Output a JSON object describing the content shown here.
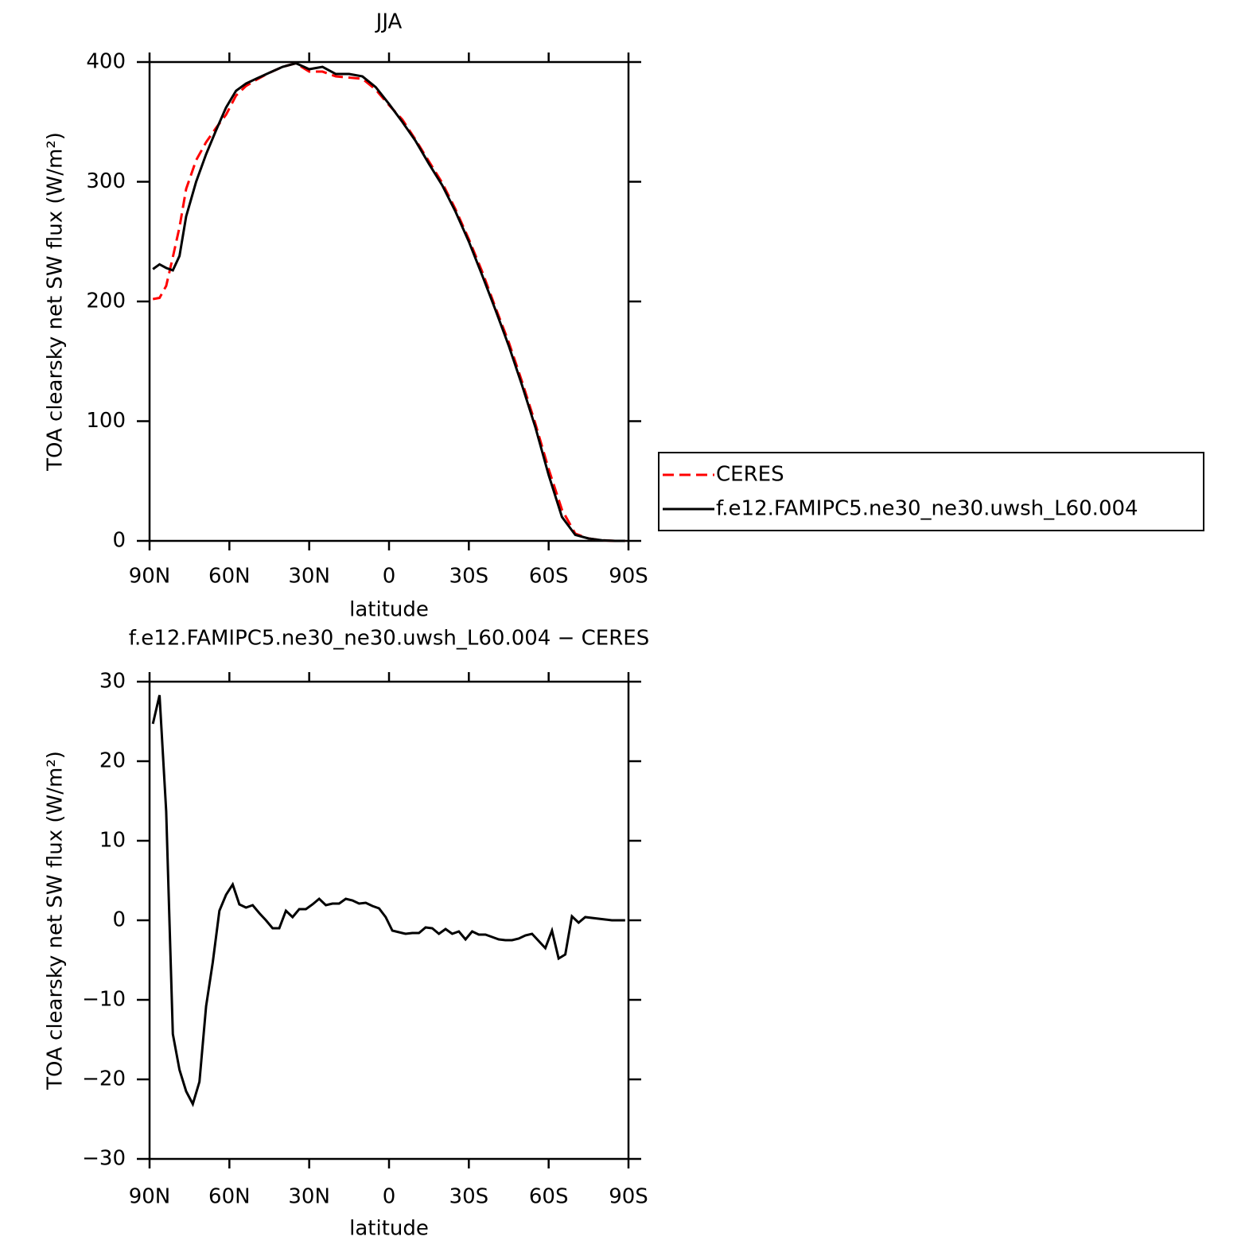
{
  "chart_data": [
    {
      "type": "line",
      "title": "JJA",
      "x_label": "latitude",
      "y_label": "TOA clearsky net SW flux (W/m²)",
      "x": [
        88.75,
        86.25,
        83.75,
        81.25,
        78.75,
        76.25,
        72.5,
        68.75,
        65,
        61.25,
        57.5,
        53.75,
        50,
        45,
        40,
        35,
        30,
        25,
        20,
        15,
        10,
        5,
        0,
        -5,
        -10,
        -15,
        -20,
        -25,
        -30,
        -35,
        -40,
        -45,
        -50,
        -55,
        -60,
        -65,
        -70,
        -75,
        -80,
        -85,
        -88.75
      ],
      "series": [
        {
          "name": "CERES",
          "color": "#ff0000",
          "line_style": "dashed",
          "values": [
            202,
            203,
            213,
            237,
            262,
            294,
            318,
            333,
            345,
            356,
            372,
            380,
            385,
            391,
            396,
            399,
            392,
            392,
            388,
            387,
            386,
            377,
            364,
            352,
            335,
            317,
            299,
            277,
            252,
            225,
            195,
            166,
            133,
            98,
            60,
            26,
            6,
            2,
            0.5,
            0,
            0
          ]
        },
        {
          "name": "f.e12.FAMIPC5.ne30_ne30.uwsh_L60.004",
          "color": "#000000",
          "line_style": "solid",
          "values": [
            227,
            231,
            228,
            226,
            238,
            271,
            300,
            323,
            343,
            362,
            376,
            382,
            386,
            391,
            396,
            399,
            394,
            396,
            390,
            390,
            388,
            379,
            365,
            350,
            334,
            315,
            297,
            275,
            250,
            222,
            193,
            163,
            130,
            95,
            55,
            20,
            5,
            2,
            0.5,
            0,
            0
          ]
        }
      ],
      "xlim": [
        90,
        -90
      ],
      "xticks": [
        {
          "value": 90,
          "label": "90N"
        },
        {
          "value": 60,
          "label": "60N"
        },
        {
          "value": 30,
          "label": "30N"
        },
        0,
        {
          "value": -30,
          "label": "30S"
        },
        {
          "value": -60,
          "label": "60S"
        },
        {
          "value": -90,
          "label": "90S"
        }
      ],
      "ylim": [
        0,
        400
      ],
      "yticks": [
        0,
        100,
        200,
        300,
        400
      ],
      "legend": "right"
    },
    {
      "type": "line",
      "title": "f.e12.FAMIPC5.ne30_ne30.uwsh_L60.004 − CERES",
      "x_label": "latitude",
      "y_label": "TOA clearsky net SW flux (W/m²)",
      "x": [
        88.75,
        86.25,
        83.75,
        81.25,
        78.75,
        76.25,
        73.75,
        71.25,
        68.75,
        66.25,
        63.75,
        61.25,
        58.75,
        56.25,
        53.75,
        51.25,
        48.75,
        46.25,
        43.75,
        41.25,
        38.75,
        36.25,
        33.75,
        31.25,
        28.75,
        26.25,
        23.75,
        21.25,
        18.75,
        16.25,
        13.75,
        11.25,
        8.75,
        6.25,
        3.75,
        1.25,
        -1.25,
        -3.75,
        -6.25,
        -8.75,
        -11.25,
        -13.75,
        -16.25,
        -18.75,
        -21.25,
        -23.75,
        -26.25,
        -28.75,
        -31.25,
        -33.75,
        -36.25,
        -38.75,
        -41.25,
        -43.75,
        -46.25,
        -48.75,
        -51.25,
        -53.75,
        -56.25,
        -58.75,
        -61.25,
        -63.75,
        -66.25,
        -68.75,
        -71.25,
        -73.75,
        -76.25,
        -78.75,
        -81.25,
        -83.75,
        -86.25,
        -88.75
      ],
      "series": [
        {
          "color": "#000000",
          "line_style": "solid",
          "values": [
            24.7,
            28.3,
            13.7,
            -14.3,
            -18.8,
            -21.5,
            -23.1,
            -20.3,
            -10.8,
            -5.3,
            1.2,
            3.2,
            4.5,
            2.0,
            1.6,
            1.9,
            0.9,
            0,
            -1.0,
            -1.0,
            1.2,
            0.4,
            1.4,
            1.4,
            2.0,
            2.7,
            1.9,
            2.1,
            2.1,
            2.7,
            2.5,
            2.1,
            2.2,
            1.8,
            1.5,
            0.4,
            -1.3,
            -1.5,
            -1.7,
            -1.6,
            -1.6,
            -0.9,
            -1.0,
            -1.7,
            -1.1,
            -1.7,
            -1.4,
            -2.4,
            -1.4,
            -1.8,
            -1.8,
            -2.1,
            -2.4,
            -2.5,
            -2.5,
            -2.3,
            -1.9,
            -1.7,
            -2.6,
            -3.5,
            -1.3,
            -4.8,
            -4.3,
            0.5,
            -0.3,
            0.4,
            0.3,
            0.2,
            0.1,
            0,
            0,
            0
          ]
        }
      ],
      "xlim": [
        90,
        -90
      ],
      "xticks": [
        {
          "value": 90,
          "label": "90N"
        },
        {
          "value": 60,
          "label": "60N"
        },
        {
          "value": 30,
          "label": "30N"
        },
        0,
        {
          "value": -30,
          "label": "30S"
        },
        {
          "value": -60,
          "label": "60S"
        },
        {
          "value": -90,
          "label": "90S"
        }
      ],
      "ylim": [
        -30,
        30
      ],
      "yticks": [
        {
          "value": -30,
          "label": "−30"
        },
        {
          "value": -20,
          "label": "−20"
        },
        {
          "value": -10,
          "label": "−10"
        },
        0,
        10,
        20,
        30
      ]
    }
  ]
}
